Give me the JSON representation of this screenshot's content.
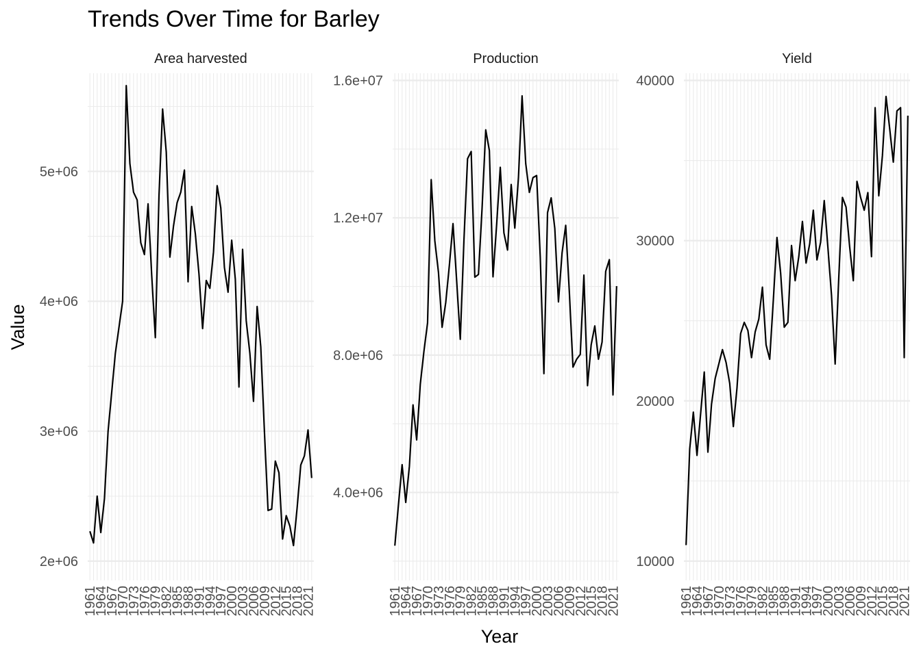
{
  "chart_data": {
    "type": "line",
    "title": "Trends Over Time for Barley",
    "xlabel": "Year",
    "ylabel": "Value",
    "xlim": [
      1961,
      2022
    ],
    "x_tick_labels": [
      "1961",
      "1964",
      "1967",
      "1970",
      "1973",
      "1976",
      "1979",
      "1982",
      "1985",
      "1988",
      "1991",
      "1994",
      "1997",
      "2000",
      "2003",
      "2006",
      "2009",
      "2012",
      "2015",
      "2018",
      "2021"
    ],
    "facets": [
      {
        "strip": "Area harvested",
        "ylim": [
          2000000,
          5700000
        ],
        "y_ticks": [
          2000000,
          3000000,
          4000000,
          5000000
        ],
        "y_tick_labels": [
          "2e+06",
          "3e+06",
          "4e+06",
          "5e+06"
        ],
        "x": [
          1961,
          1962,
          1963,
          1964,
          1965,
          1966,
          1967,
          1968,
          1969,
          1970,
          1971,
          1972,
          1973,
          1974,
          1975,
          1976,
          1977,
          1978,
          1979,
          1980,
          1981,
          1982,
          1983,
          1984,
          1985,
          1986,
          1987,
          1988,
          1989,
          1990,
          1991,
          1992,
          1993,
          1994,
          1995,
          1996,
          1997,
          1998,
          1999,
          2000,
          2001,
          2002,
          2003,
          2004,
          2005,
          2006,
          2007,
          2008,
          2009,
          2010,
          2011,
          2012,
          2013,
          2014,
          2015,
          2016,
          2017,
          2018,
          2019,
          2020,
          2021,
          2022
        ],
        "values": [
          2230000,
          2140000,
          2500000,
          2220000,
          2480000,
          3000000,
          3300000,
          3600000,
          3800000,
          4000000,
          5660000,
          5060000,
          4840000,
          4780000,
          4450000,
          4360000,
          4750000,
          4200000,
          3720000,
          4810000,
          5480000,
          5150000,
          4340000,
          4580000,
          4760000,
          4840000,
          5010000,
          4150000,
          4730000,
          4520000,
          4210000,
          3790000,
          4160000,
          4100000,
          4380000,
          4890000,
          4720000,
          4260000,
          4070000,
          4470000,
          4170000,
          3340000,
          4400000,
          3850000,
          3600000,
          3230000,
          3960000,
          3650000,
          3000000,
          2390000,
          2400000,
          2770000,
          2680000,
          2170000,
          2350000,
          2270000,
          2120000,
          2410000,
          2740000,
          2810000,
          3010000,
          2640000
        ]
      },
      {
        "strip": "Production",
        "ylim": [
          2000000,
          16000000
        ],
        "y_ticks": [
          4000000,
          8000000,
          12000000,
          16000000
        ],
        "y_tick_labels": [
          "4.0e+06",
          "8.0e+06",
          "1.2e+07",
          "1.6e+07"
        ],
        "x": [
          1961,
          1962,
          1963,
          1964,
          1965,
          1966,
          1967,
          1968,
          1969,
          1970,
          1971,
          1972,
          1973,
          1974,
          1975,
          1976,
          1977,
          1978,
          1979,
          1980,
          1981,
          1982,
          1983,
          1984,
          1985,
          1986,
          1987,
          1988,
          1989,
          1990,
          1991,
          1992,
          1993,
          1994,
          1995,
          1996,
          1997,
          1998,
          1999,
          2000,
          2001,
          2002,
          2003,
          2004,
          2005,
          2006,
          2007,
          2008,
          2009,
          2010,
          2011,
          2012,
          2013,
          2014,
          2015,
          2016,
          2017,
          2018,
          2019,
          2020,
          2021,
          2022
        ],
        "values": [
          2450000,
          3650000,
          4810000,
          3710000,
          4760000,
          6550000,
          5530000,
          7150000,
          8110000,
          8940000,
          13110000,
          11330000,
          10410000,
          8810000,
          9530000,
          10620000,
          11830000,
          10170000,
          8460000,
          11330000,
          13720000,
          13930000,
          10270000,
          10350000,
          12290000,
          14560000,
          13960000,
          10280000,
          11800000,
          13470000,
          11560000,
          11060000,
          12970000,
          11700000,
          13170000,
          15550000,
          13580000,
          12740000,
          13170000,
          13230000,
          10850000,
          7460000,
          12150000,
          12580000,
          11690000,
          9550000,
          10980000,
          11780000,
          9830000,
          7650000,
          7880000,
          8020000,
          10330000,
          7110000,
          8300000,
          8850000,
          7880000,
          8380000,
          10440000,
          10780000,
          6840000,
          10010000
        ]
      },
      {
        "strip": "Yield",
        "ylim": [
          10000,
          40000
        ],
        "y_ticks": [
          10000,
          20000,
          30000,
          40000
        ],
        "y_tick_labels": [
          "10000",
          "20000",
          "30000",
          "40000"
        ],
        "x": [
          1961,
          1962,
          1963,
          1964,
          1965,
          1966,
          1967,
          1968,
          1969,
          1970,
          1971,
          1972,
          1973,
          1974,
          1975,
          1976,
          1977,
          1978,
          1979,
          1980,
          1981,
          1982,
          1983,
          1984,
          1985,
          1986,
          1987,
          1988,
          1989,
          1990,
          1991,
          1992,
          1993,
          1994,
          1995,
          1996,
          1997,
          1998,
          1999,
          2000,
          2001,
          2002,
          2003,
          2004,
          2005,
          2006,
          2007,
          2008,
          2009,
          2010,
          2011,
          2012,
          2013,
          2014,
          2015,
          2016,
          2017,
          2018,
          2019,
          2020,
          2021,
          2022
        ],
        "values": [
          11000,
          17000,
          19300,
          16600,
          19200,
          21800,
          16800,
          19800,
          21400,
          22300,
          23200,
          22400,
          21100,
          18400,
          20800,
          24200,
          24900,
          24400,
          22700,
          24300,
          25100,
          27100,
          23500,
          22600,
          26300,
          30200,
          28000,
          24600,
          24900,
          29700,
          27500,
          29000,
          31200,
          28600,
          29800,
          31900,
          28800,
          29900,
          32500,
          29600,
          26600,
          22300,
          27700,
          32700,
          32100,
          29600,
          27500,
          33700,
          32700,
          31900,
          33000,
          29000,
          38300,
          32800,
          35300,
          39000,
          37000,
          34900,
          38100,
          38300,
          22700,
          37800
        ]
      }
    ]
  }
}
